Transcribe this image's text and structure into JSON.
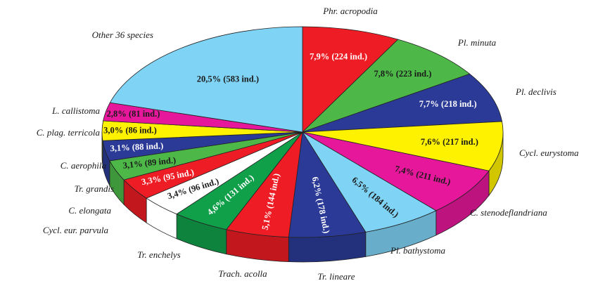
{
  "chart_data": {
    "type": "pie",
    "style": "3d-tilted",
    "title": "",
    "slices": [
      {
        "name": "Phr. acropodia",
        "percent": 7.9,
        "count": 224,
        "label": "7,9% (224 ind.)",
        "color": "#ee1c25",
        "text_color": "#ffffff"
      },
      {
        "name": "Pl. minuta",
        "percent": 7.8,
        "count": 223,
        "label": "7,8% (223 ind.)",
        "color": "#4db848",
        "text_color": "#1a1a1a"
      },
      {
        "name": "Pl. declivis",
        "percent": 7.7,
        "count": 218,
        "label": "7,7% (218 ind.)",
        "color": "#2b3a97",
        "text_color": "#ffffff"
      },
      {
        "name": "Cycl. eurystoma",
        "percent": 7.6,
        "count": 217,
        "label": "7,6% (217 ind.)",
        "color": "#fff200",
        "text_color": "#1a1a1a"
      },
      {
        "name": "C. stenodeflandriana",
        "percent": 7.4,
        "count": 211,
        "label": "7,4% (211 ind.)",
        "color": "#e6179b",
        "text_color": "#1a1a1a"
      },
      {
        "name": "Pl. bathystoma",
        "percent": 6.5,
        "count": 184,
        "label": "6,5% (184 ind.)",
        "color": "#7fd3f5",
        "text_color": "#1a1a1a"
      },
      {
        "name": "Tr. lineare",
        "percent": 6.2,
        "count": 178,
        "label": "6,2% (178 ind.)",
        "color": "#2b3a97",
        "text_color": "#ffffff"
      },
      {
        "name": "Trach. acolla",
        "percent": 5.1,
        "count": 144,
        "label": "5,1% (144 ind.)",
        "color": "#ee1c25",
        "text_color": "#ffffff"
      },
      {
        "name": "Tr. enchelys",
        "percent": 4.6,
        "count": 131,
        "label": "4,6% (131 ind.)",
        "color": "#10a04a",
        "text_color": "#ffffff"
      },
      {
        "name": "Cycl. eur. parvula",
        "percent": 3.4,
        "count": 96,
        "label": "3,4% (96 ind.)",
        "color": "#ffffff",
        "text_color": "#1a1a1a"
      },
      {
        "name": "C. elongata",
        "percent": 3.3,
        "count": 95,
        "label": "3,3% (95 ind.)",
        "color": "#ee1c25",
        "text_color": "#ffffff"
      },
      {
        "name": "Tr. grandis",
        "percent": 3.1,
        "count": 89,
        "label": "3,1% (89 ind.)",
        "color": "#4db848",
        "text_color": "#1a1a1a"
      },
      {
        "name": "C. aerophila",
        "percent": 3.1,
        "count": 88,
        "label": "3,1% (88 ind.)",
        "color": "#2b3a97",
        "text_color": "#ffffff"
      },
      {
        "name": "C. plag. terricola",
        "percent": 3.0,
        "count": 86,
        "label": "3,0% (86 ind.)",
        "color": "#fff200",
        "text_color": "#1a1a1a"
      },
      {
        "name": "L. callistoma",
        "percent": 2.8,
        "count": 81,
        "label": "2,8% (81 ind.)",
        "color": "#e6179b",
        "text_color": "#1a1a1a"
      },
      {
        "name": "Other 36 species",
        "percent": 20.5,
        "count": 583,
        "label": "20,5% (583 ind.)",
        "color": "#7fd3f5",
        "text_color": "#1a1a1a"
      }
    ]
  }
}
